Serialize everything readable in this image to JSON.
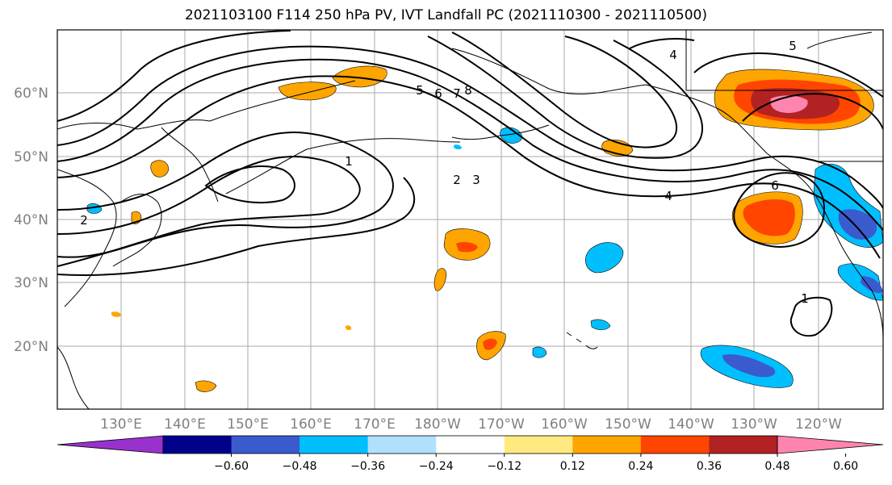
{
  "title": "2021103100 F114 250 hPa PV, IVT Landfall PC (2021110300 - 2021110500)",
  "map": {
    "lon_ticks": [
      "130°E",
      "140°E",
      "150°E",
      "160°E",
      "170°E",
      "180°W",
      "170°W",
      "160°W",
      "150°W",
      "140°W",
      "130°W",
      "120°W"
    ],
    "lat_ticks": [
      "60°N",
      "50°N",
      "40°N",
      "30°N",
      "20°N"
    ],
    "contour_labels": [
      "1",
      "2",
      "3",
      "4",
      "5",
      "6",
      "7",
      "8",
      "4",
      "6",
      "1",
      "5",
      "2"
    ]
  },
  "colorbar": {
    "colors": [
      "#9932cc",
      "#00008b",
      "#3a5bcd",
      "#00bfff",
      "#b0e0fc",
      "#ffffff",
      "#ffea80",
      "#ffa500",
      "#ff4500",
      "#b22222",
      "#ff85b0"
    ],
    "tick_labels": [
      "−0.60",
      "−0.48",
      "−0.36",
      "−0.24",
      "−0.12",
      "0.12",
      "0.24",
      "0.36",
      "0.48",
      "0.60"
    ]
  }
}
